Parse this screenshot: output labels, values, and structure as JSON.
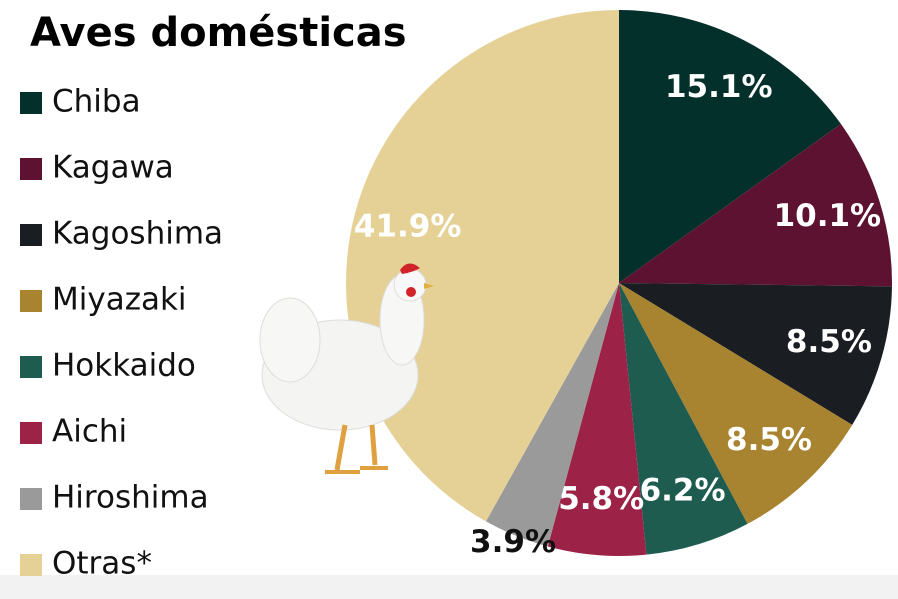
{
  "chart_data": {
    "type": "pie",
    "title": "Aves domésticas",
    "categories": [
      "Chiba",
      "Kagawa",
      "Kagoshima",
      "Miyazaki",
      "Hokkaido",
      "Aichi",
      "Hiroshima",
      "Otras*"
    ],
    "values": [
      15.1,
      10.1,
      8.5,
      8.5,
      6.2,
      5.8,
      3.9,
      41.9
    ],
    "value_labels": [
      "15.1%",
      "10.1%",
      "8.5%",
      "8.5%",
      "6.2%",
      "5.8%",
      "3.9%",
      "41.9%"
    ],
    "colors": [
      "#03302a",
      "#5c1230",
      "#1a1e22",
      "#a88430",
      "#1f5c50",
      "#9c2248",
      "#9a9a9a",
      "#e5d196"
    ]
  }
}
